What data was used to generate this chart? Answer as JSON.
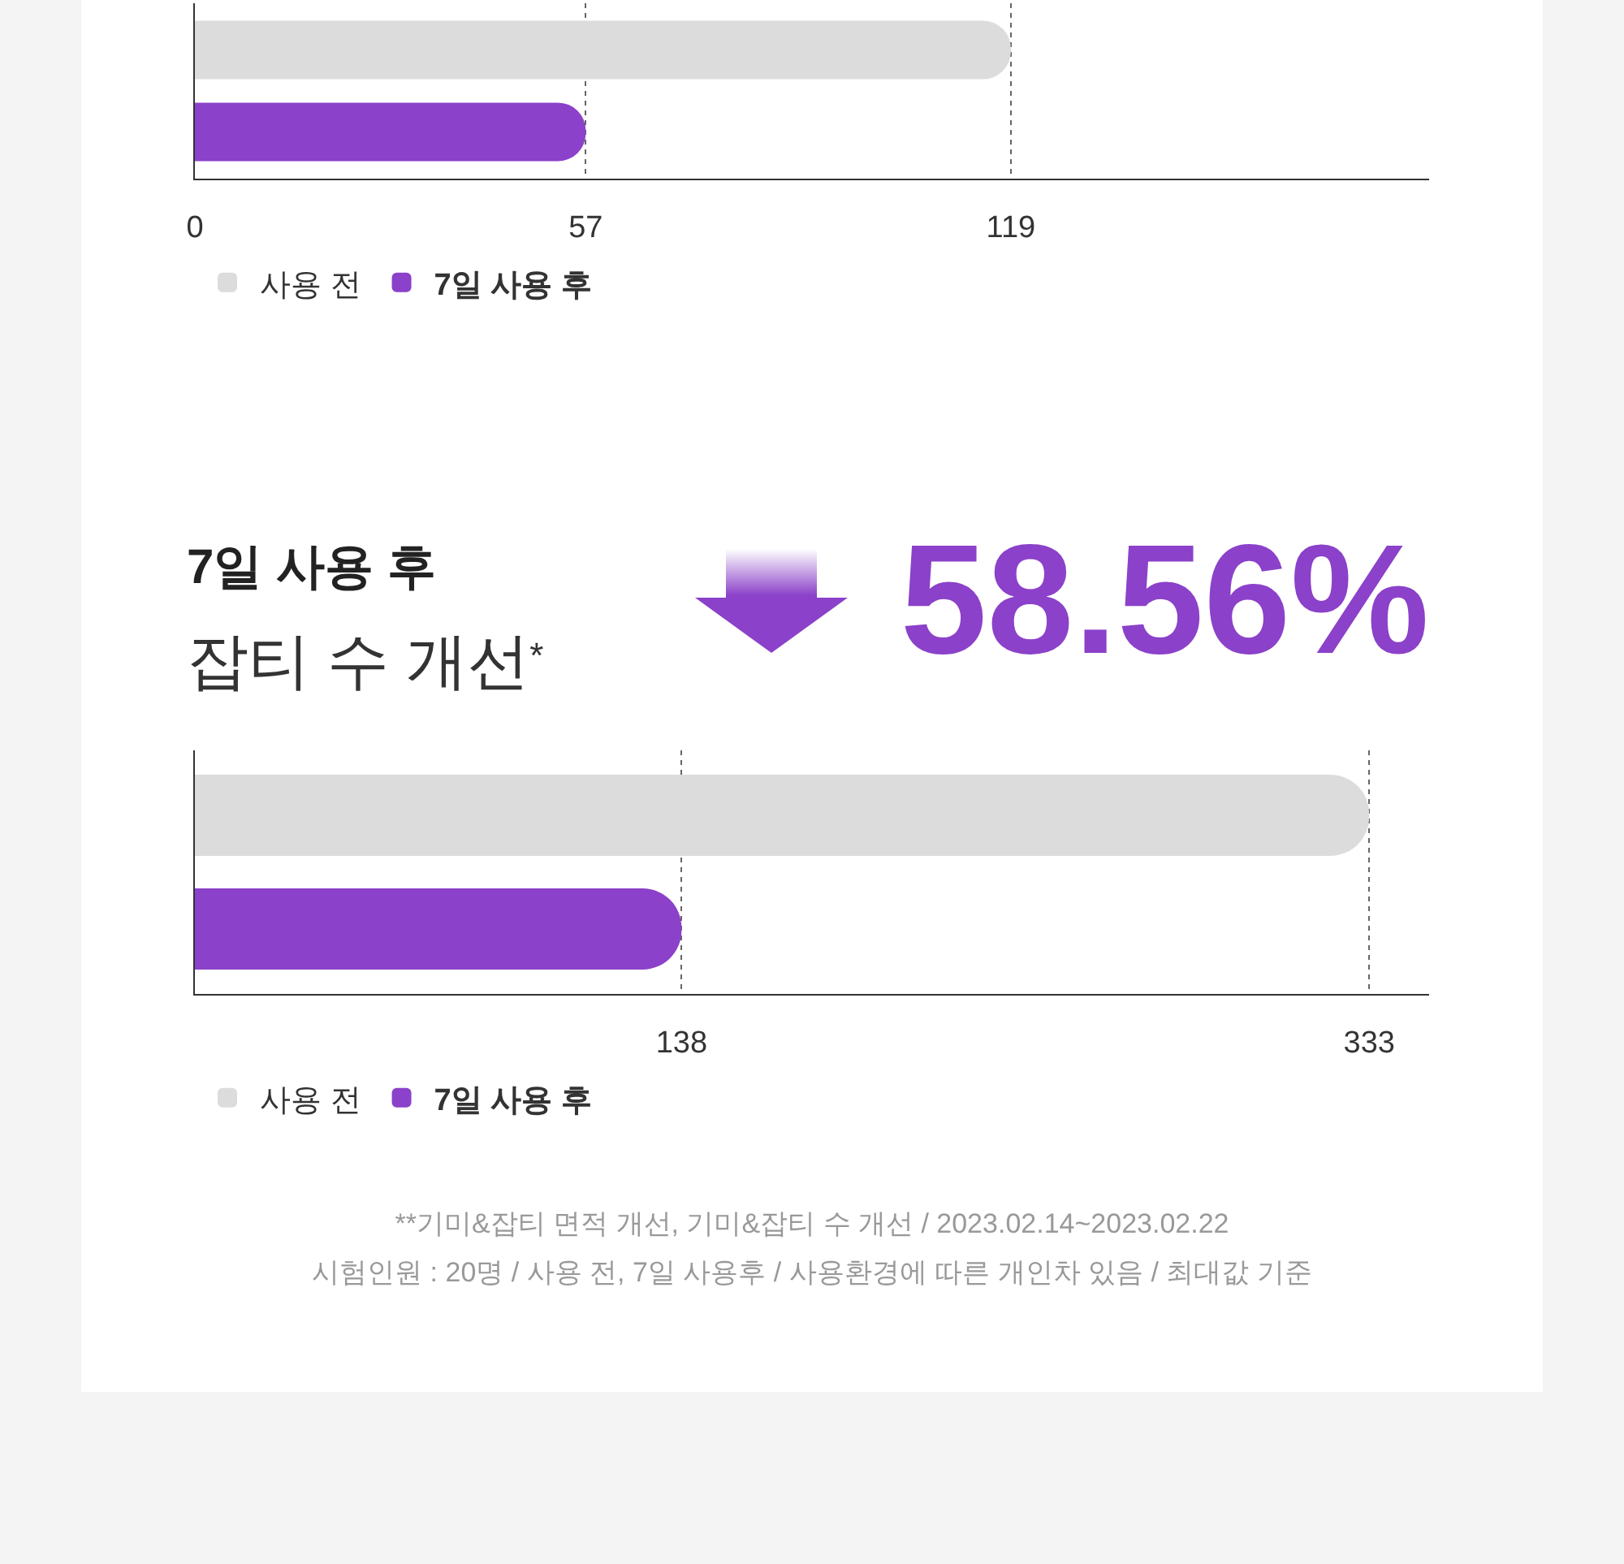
{
  "chart_data": [
    {
      "type": "bar",
      "orientation": "horizontal",
      "categories": [
        null
      ],
      "series": [
        {
          "name": "사용 전",
          "color": "#dcdcdc",
          "values": [
            119
          ]
        },
        {
          "name": "7일 사용 후",
          "color": "#8b41c9",
          "values": [
            57
          ]
        }
      ],
      "xlim": [
        0,
        180
      ],
      "xticks": [
        0,
        57,
        119
      ],
      "grid": "x",
      "legend": "bottom left",
      "tick_labels": "x"
    },
    {
      "type": "bar",
      "orientation": "horizontal",
      "title": "7일 사용 후",
      "subtitle": "잡티 수 개선$^{*}$",
      "annotations": [
        "58.56%",
        "**기미&잡티 면적 개선, 기미&잡티 수 개선 / 2023.02.14~2023.02.22",
        "시험인원 : 20명 / 사용 전, 7일 사용후 / 사용환경에 따른 개인차 있음 / 최대값 기준"
      ],
      "categories": [
        null
      ],
      "series": [
        {
          "name": "사용 전",
          "color": "#dcdcdc",
          "values": [
            333
          ]
        },
        {
          "name": "7일 사용 후",
          "color": "#8b41c9",
          "values": [
            138
          ]
        }
      ],
      "xlim": [
        0,
        350
      ],
      "xticks": [
        138,
        333
      ],
      "grid": "x",
      "legend": "bottom left",
      "tick_labels": "x"
    }
  ]
}
